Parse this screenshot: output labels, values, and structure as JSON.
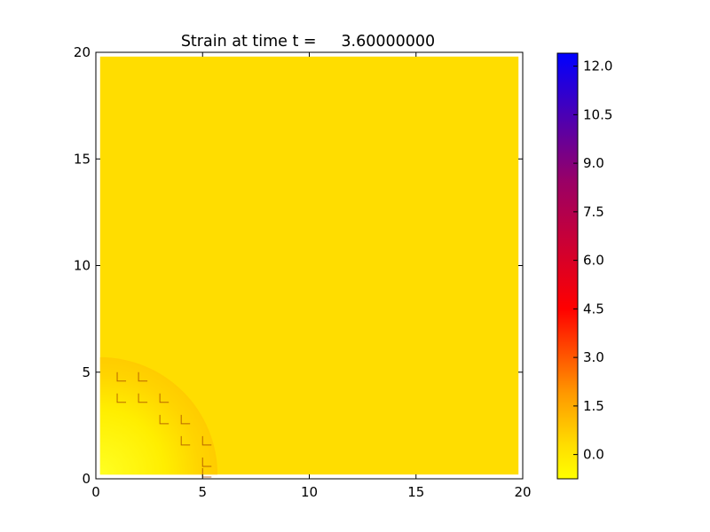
{
  "chart_data": {
    "type": "heatmap",
    "title": "Strain at time t =     3.60000000",
    "xlabel": "",
    "ylabel": "",
    "xlim": [
      0,
      20
    ],
    "ylim": [
      0,
      20
    ],
    "x_ticks": [
      "0",
      "5",
      "10",
      "15",
      "20"
    ],
    "y_ticks": [
      "0",
      "5",
      "10",
      "15",
      "20"
    ],
    "grid": false,
    "colorbar": {
      "range": [
        -0.75,
        12.4
      ],
      "ticks": [
        "0.0",
        "1.5",
        "3.0",
        "4.5",
        "6.0",
        "7.5",
        "9.0",
        "10.5",
        "12.0"
      ],
      "colors": [
        "#ffff00",
        "#ff8000",
        "#ff0000",
        "#800080",
        "#0000ff"
      ]
    },
    "field": {
      "background_value": 0.2,
      "background_color": "#ffdd00",
      "region": "quarter disk centered at (0,0), radius 5.5",
      "region_values": [
        -0.6,
        0.4
      ]
    }
  }
}
